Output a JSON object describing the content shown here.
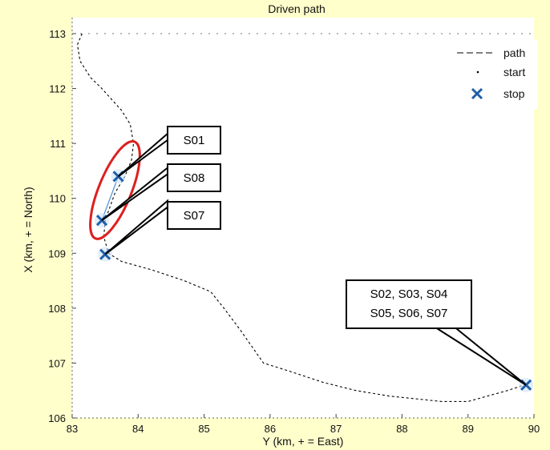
{
  "chart_data": {
    "type": "line",
    "title": "Driven path",
    "xlabel": "Y (km, + = East)",
    "ylabel": "X (km, + = North)",
    "xlim": [
      83,
      90
    ],
    "ylim": [
      106,
      113
    ],
    "xticks": [
      "83",
      "84",
      "85",
      "86",
      "87",
      "88",
      "89",
      "90"
    ],
    "yticks": [
      "106",
      "107",
      "108",
      "109",
      "110",
      "111",
      "112",
      "113"
    ],
    "grid": false,
    "legend_position": "top-right",
    "legend": [
      {
        "label": "path",
        "style": "dashed line"
      },
      {
        "label": "start",
        "style": "dot"
      },
      {
        "label": "stop",
        "style": "x marker"
      }
    ],
    "series": [
      {
        "name": "path",
        "x": [
          83.15,
          83.08,
          83.12,
          83.28,
          83.45,
          83.6,
          83.75,
          83.88,
          83.93,
          83.9,
          83.8,
          83.65,
          83.5,
          83.48,
          83.55,
          83.75,
          84.2,
          84.7,
          85.1,
          85.3,
          85.55,
          85.9,
          86.3,
          86.8,
          87.3,
          87.8,
          88.2,
          88.6,
          89.0,
          89.3,
          89.6,
          89.85
        ],
        "y": [
          113.0,
          112.8,
          112.5,
          112.2,
          112.0,
          111.8,
          111.6,
          111.35,
          111.0,
          110.7,
          110.4,
          110.1,
          109.6,
          109.3,
          109.0,
          108.85,
          108.7,
          108.5,
          108.3,
          108.0,
          107.6,
          107.0,
          106.85,
          106.65,
          106.5,
          106.4,
          106.35,
          106.3,
          106.3,
          106.4,
          106.5,
          106.6
        ]
      }
    ],
    "stops": [
      {
        "x": 83.7,
        "y": 110.4
      },
      {
        "x": 83.45,
        "y": 109.6
      },
      {
        "x": 83.5,
        "y": 108.98
      },
      {
        "x": 89.88,
        "y": 106.6
      }
    ],
    "highlight_ellipse": {
      "cx": 83.65,
      "cy": 110.15,
      "rx": 0.45,
      "ry": 0.95,
      "color": "#dd1f1f"
    },
    "callouts": [
      {
        "text": "S01",
        "target": {
          "x": 83.7,
          "y": 110.4
        }
      },
      {
        "text": "S08",
        "target": {
          "x": 83.45,
          "y": 109.6
        }
      },
      {
        "text": "S07",
        "target": {
          "x": 83.5,
          "y": 108.98
        }
      },
      {
        "text": "S02, S03, S04\nS05, S06, S07",
        "target": {
          "x": 89.88,
          "y": 106.6
        }
      }
    ],
    "colors": {
      "path": "#000000",
      "stop": "#1f5fa8",
      "start": "#000000",
      "ellipse": "#dd1f1f",
      "page_background": "#ffffcc"
    }
  }
}
